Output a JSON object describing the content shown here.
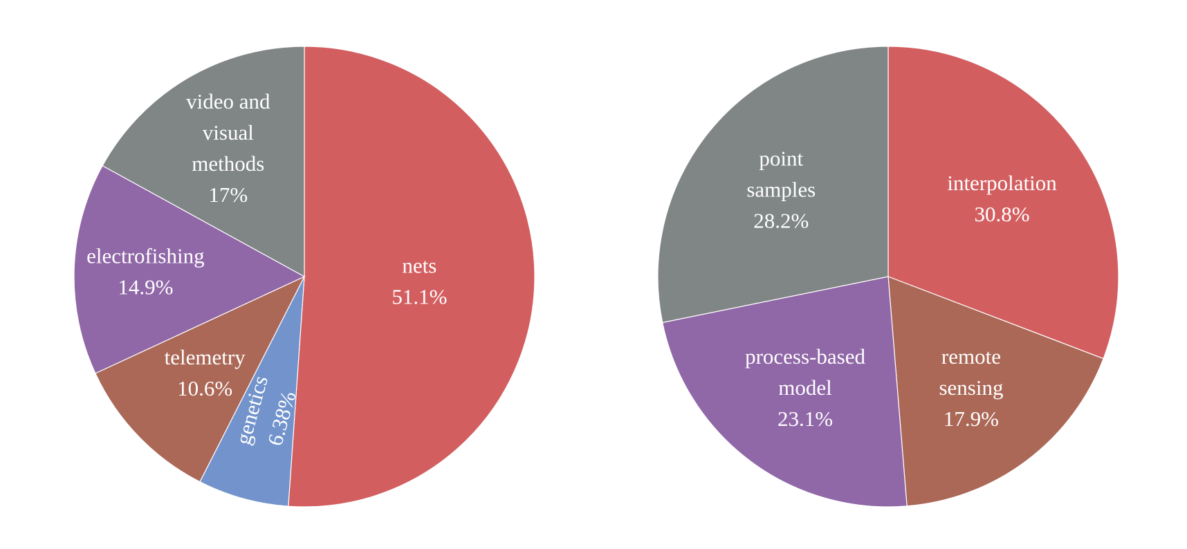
{
  "chart_data": [
    {
      "type": "pie",
      "slices": [
        {
          "label": [
            "nets"
          ],
          "value_label": "51.1%",
          "value": 51.1,
          "color": "#d35e60"
        },
        {
          "label": [
            "genetics"
          ],
          "value_label": "6.38%",
          "value": 6.38,
          "color": "#7293cb"
        },
        {
          "label": [
            "telemetry"
          ],
          "value_label": "10.6%",
          "value": 10.6,
          "color": "#ab6857"
        },
        {
          "label": [
            "electrofishing"
          ],
          "value_label": "14.9%",
          "value": 14.9,
          "color": "#9067a7"
        },
        {
          "label": [
            "video and",
            "visual",
            "methods"
          ],
          "value_label": "17%",
          "value": 17,
          "color": "#808585"
        }
      ]
    },
    {
      "type": "pie",
      "slices": [
        {
          "label": [
            "interpolation"
          ],
          "value_label": "30.8%",
          "value": 30.8,
          "color": "#d35e60"
        },
        {
          "label": [
            "remote",
            "sensing"
          ],
          "value_label": "17.9%",
          "value": 17.9,
          "color": "#ab6857"
        },
        {
          "label": [
            "process-based",
            "model"
          ],
          "value_label": "23.1%",
          "value": 23.1,
          "color": "#9067a7"
        },
        {
          "label": [
            "point",
            "samples"
          ],
          "value_label": "28.2%",
          "value": 28.2,
          "color": "#808585"
        }
      ]
    }
  ]
}
